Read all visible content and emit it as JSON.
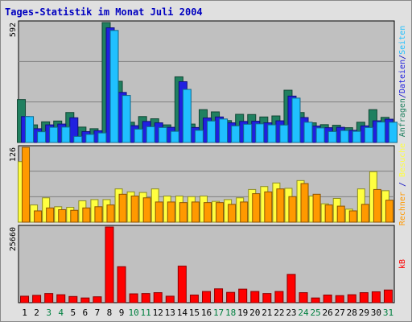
{
  "title": "Tages-Statistik im Monat Juli 2004",
  "colors": {
    "frame_bg": "#e0e0e0",
    "panel_bg": "#c0c0c0",
    "grid": "#808080",
    "title": "#0000c0",
    "anfragen": "#208060",
    "dateien": "#2020e0",
    "seiten": "#20c0ff",
    "besuche": "#ffff40",
    "rechner": "#ff9900",
    "kb": "#ff0000",
    "weekday_label": "#000000",
    "weekend_label": "#008040"
  },
  "chart_data": [
    {
      "type": "bar",
      "name": "requests-files-pages",
      "ymax_label": "592",
      "ylim": [
        0,
        592
      ],
      "categories": [
        "1",
        "2",
        "3",
        "4",
        "5",
        "6",
        "7",
        "8",
        "9",
        "10",
        "11",
        "12",
        "13",
        "14",
        "15",
        "16",
        "17",
        "18",
        "19",
        "20",
        "21",
        "22",
        "23",
        "24",
        "25",
        "26",
        "27",
        "28",
        "29",
        "30",
        "31"
      ],
      "series": [
        {
          "name": "Anfragen",
          "color_key": "anfragen",
          "values": [
            212,
            87,
            102,
            106,
            148,
            76,
            68,
            592,
            302,
            100,
            128,
            117,
            87,
            324,
            91,
            162,
            151,
            108,
            139,
            138,
            126,
            131,
            258,
            148,
            97,
            88,
            85,
            73,
            100,
            162,
            124
          ]
        },
        {
          "name": "Dateien",
          "color_key": "dateien",
          "values": [
            128,
            68,
            87,
            91,
            122,
            54,
            58,
            566,
            247,
            83,
            104,
            97,
            75,
            300,
            74,
            121,
            126,
            97,
            104,
            105,
            97,
            107,
            229,
            123,
            81,
            73,
            75,
            60,
            82,
            107,
            115
          ]
        },
        {
          "name": "Seiten",
          "color_key": "seiten",
          "values": [
            128,
            53,
            75,
            76,
            30,
            40,
            47,
            553,
            232,
            66,
            78,
            74,
            55,
            262,
            60,
            106,
            116,
            82,
            90,
            92,
            87,
            86,
            219,
            100,
            72,
            54,
            59,
            55,
            74,
            101,
            100
          ]
        }
      ],
      "axis_label_segments": [
        {
          "text": "Anfragen",
          "color_key": "anfragen"
        },
        {
          "text": "/",
          "color_key": "title"
        },
        {
          "text": "Dateien",
          "color_key": "dateien"
        },
        {
          "text": "/",
          "color_key": "title"
        },
        {
          "text": "Seiten",
          "color_key": "seiten"
        }
      ]
    },
    {
      "type": "bar",
      "name": "visits-hosts",
      "ymax_label": "126",
      "ylim": [
        0,
        126
      ],
      "categories": [
        "1",
        "2",
        "3",
        "4",
        "5",
        "6",
        "7",
        "8",
        "9",
        "10",
        "11",
        "12",
        "13",
        "14",
        "15",
        "16",
        "17",
        "18",
        "19",
        "20",
        "21",
        "22",
        "23",
        "24",
        "25",
        "26",
        "27",
        "28",
        "29",
        "30",
        "31"
      ],
      "series": [
        {
          "name": "Besuche",
          "color_key": "besuche",
          "values": [
            102,
            29,
            41,
            26,
            25,
            36,
            38,
            38,
            56,
            51,
            50,
            56,
            44,
            44,
            43,
            44,
            35,
            38,
            41,
            55,
            60,
            66,
            57,
            70,
            44,
            31,
            40,
            22,
            56,
            85,
            53
          ]
        },
        {
          "name": "Rechner",
          "color_key": "rechner",
          "values": [
            126,
            19,
            24,
            21,
            20,
            24,
            26,
            29,
            47,
            44,
            41,
            34,
            34,
            33,
            34,
            33,
            33,
            30,
            34,
            48,
            51,
            56,
            43,
            65,
            47,
            29,
            27,
            19,
            30,
            55,
            37
          ]
        }
      ],
      "axis_label_segments": [
        {
          "text": "Rechner",
          "color_key": "rechner"
        },
        {
          "text": " / ",
          "color_key": "title"
        },
        {
          "text": "Besuche",
          "color_key": "besuche"
        }
      ]
    },
    {
      "type": "bar",
      "name": "traffic-kb",
      "ymax_label": "25660",
      "ylim": [
        0,
        25660
      ],
      "categories": [
        "1",
        "2",
        "3",
        "4",
        "5",
        "6",
        "7",
        "8",
        "9",
        "10",
        "11",
        "12",
        "13",
        "14",
        "15",
        "16",
        "17",
        "18",
        "19",
        "20",
        "21",
        "22",
        "23",
        "24",
        "25",
        "26",
        "27",
        "28",
        "29",
        "30",
        "31"
      ],
      "series": [
        {
          "name": "kB",
          "color_key": "kb",
          "values": [
            2200,
            2500,
            3100,
            2700,
            2100,
            1600,
            2000,
            25660,
            12200,
            3000,
            3100,
            3400,
            2200,
            12400,
            2600,
            3800,
            4700,
            3500,
            4600,
            3800,
            3100,
            3800,
            9600,
            3400,
            1600,
            2600,
            2400,
            2700,
            3400,
            3700,
            4300
          ]
        }
      ],
      "axis_label_segments": [
        {
          "text": "kB",
          "color_key": "kb"
        }
      ]
    }
  ],
  "x_labels": [
    {
      "text": "1",
      "weekend": false
    },
    {
      "text": "2",
      "weekend": false
    },
    {
      "text": "3",
      "weekend": true
    },
    {
      "text": "4",
      "weekend": true
    },
    {
      "text": "5",
      "weekend": false
    },
    {
      "text": "6",
      "weekend": false
    },
    {
      "text": "7",
      "weekend": false
    },
    {
      "text": "8",
      "weekend": false
    },
    {
      "text": "9",
      "weekend": false
    },
    {
      "text": "10",
      "weekend": true
    },
    {
      "text": "11",
      "weekend": true
    },
    {
      "text": "12",
      "weekend": false
    },
    {
      "text": "13",
      "weekend": false
    },
    {
      "text": "14",
      "weekend": false
    },
    {
      "text": "15",
      "weekend": false
    },
    {
      "text": "16",
      "weekend": false
    },
    {
      "text": "17",
      "weekend": true
    },
    {
      "text": "18",
      "weekend": true
    },
    {
      "text": "19",
      "weekend": false
    },
    {
      "text": "20",
      "weekend": false
    },
    {
      "text": "21",
      "weekend": false
    },
    {
      "text": "22",
      "weekend": false
    },
    {
      "text": "23",
      "weekend": false
    },
    {
      "text": "24",
      "weekend": true
    },
    {
      "text": "25",
      "weekend": true
    },
    {
      "text": "26",
      "weekend": false
    },
    {
      "text": "27",
      "weekend": false
    },
    {
      "text": "28",
      "weekend": false
    },
    {
      "text": "29",
      "weekend": false
    },
    {
      "text": "30",
      "weekend": false
    },
    {
      "text": "31",
      "weekend": true
    }
  ]
}
